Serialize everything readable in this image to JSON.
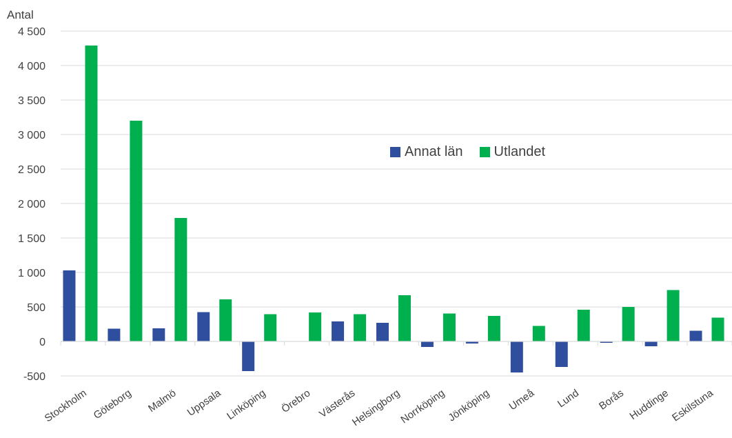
{
  "chart_data": {
    "type": "bar",
    "ylabel": "Antal",
    "ylim": [
      -500,
      4500
    ],
    "yticks": [
      {
        "value": -500,
        "label": "-500"
      },
      {
        "value": 0,
        "label": "0"
      },
      {
        "value": 500,
        "label": "500"
      },
      {
        "value": 1000,
        "label": "1 000"
      },
      {
        "value": 1500,
        "label": "1 500"
      },
      {
        "value": 2000,
        "label": "2 000"
      },
      {
        "value": 2500,
        "label": "2 500"
      },
      {
        "value": 3000,
        "label": "3 000"
      },
      {
        "value": 3500,
        "label": "3 500"
      },
      {
        "value": 4000,
        "label": "4 000"
      },
      {
        "value": 4500,
        "label": "4 500"
      }
    ],
    "categories": [
      "Stockholm",
      "Göteborg",
      "Malmö",
      "Uppsala",
      "Linköping",
      "Örebro",
      "Västerås",
      "Helsingborg",
      "Norrköping",
      "Jönköping",
      "Umeå",
      "Lund",
      "Borås",
      "Huddinge",
      "Eskilstuna"
    ],
    "series": [
      {
        "name": "Annat län",
        "color": "#2f4f9e",
        "values": [
          1030,
          185,
          190,
          425,
          -430,
          5,
          290,
          270,
          -80,
          -30,
          -450,
          -370,
          -20,
          -70,
          155
        ]
      },
      {
        "name": "Utlandet",
        "color": "#00b04f",
        "values": [
          4290,
          3200,
          1790,
          610,
          395,
          420,
          395,
          670,
          405,
          370,
          225,
          460,
          500,
          745,
          345
        ]
      }
    ],
    "grid": true,
    "legend_position": "center-right"
  }
}
